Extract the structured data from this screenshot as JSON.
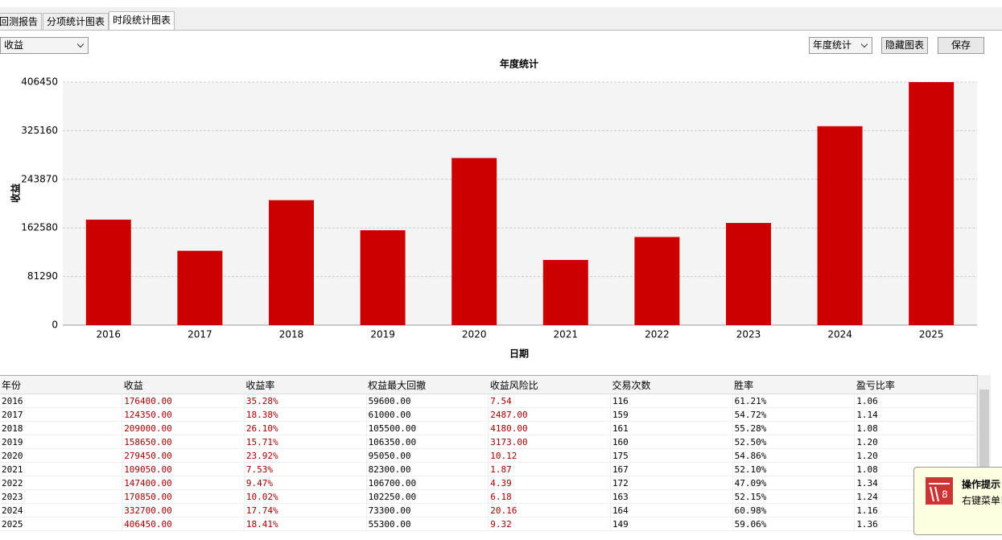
{
  "tabs": [
    "回测报告",
    "分项统计图表",
    "时段统计图表"
  ],
  "toolbar": {
    "metric_select": "收益",
    "period_select": "年度统计",
    "hide_button": "隐藏图表",
    "save_button": "保存"
  },
  "chart_data": {
    "type": "bar",
    "title": "年度统计",
    "x_label": "日期",
    "y_label": "收益",
    "categories": [
      "2016",
      "2017",
      "2018",
      "2019",
      "2020",
      "2021",
      "2022",
      "2023",
      "2024",
      "2025"
    ],
    "values": [
      176400,
      124350,
      209000,
      158650,
      279450,
      109050,
      147400,
      170850,
      332700,
      406450
    ],
    "color": "#cc0000",
    "ylim": [
      0,
      406450
    ],
    "yticks": [
      0,
      81290,
      162580,
      243870,
      325160,
      406450
    ],
    "grid": true
  },
  "table": {
    "header": [
      "年份",
      "收益",
      "收益率",
      "权益最大回撤",
      "收益风险比",
      "交易次数",
      "胜率",
      "盈亏比率"
    ],
    "rows": [
      [
        "2016",
        "176400.00",
        "35.28%",
        "59600.00",
        "7.54",
        "116",
        "61.21%",
        "1.06"
      ],
      [
        "2017",
        "124350.00",
        "18.38%",
        "61000.00",
        "2487.00",
        "159",
        "54.72%",
        "1.14"
      ],
      [
        "2018",
        "209000.00",
        "26.10%",
        "105500.00",
        "4180.00",
        "161",
        "55.28%",
        "1.08"
      ],
      [
        "2019",
        "158650.00",
        "15.71%",
        "106350.00",
        "3173.00",
        "160",
        "52.50%",
        "1.20"
      ],
      [
        "2020",
        "279450.00",
        "23.92%",
        "95050.00",
        "10.12",
        "175",
        "54.86%",
        "1.20"
      ],
      [
        "2021",
        "109050.00",
        "7.53%",
        "82300.00",
        "1.87",
        "167",
        "52.10%",
        "1.08"
      ],
      [
        "2022",
        "147400.00",
        "9.47%",
        "106700.00",
        "4.39",
        "172",
        "47.09%",
        "1.34"
      ],
      [
        "2023",
        "170850.00",
        "10.02%",
        "102250.00",
        "6.18",
        "163",
        "52.15%",
        "1.24"
      ],
      [
        "2024",
        "332700.00",
        "17.74%",
        "73300.00",
        "20.16",
        "164",
        "60.98%",
        "1.16"
      ],
      [
        "2025",
        "406450.00",
        "18.41%",
        "55300.00",
        "9.32",
        "149",
        "59.06%",
        "1.36"
      ]
    ]
  },
  "toast": {
    "title": "操作提示",
    "message": "右键菜单!"
  }
}
